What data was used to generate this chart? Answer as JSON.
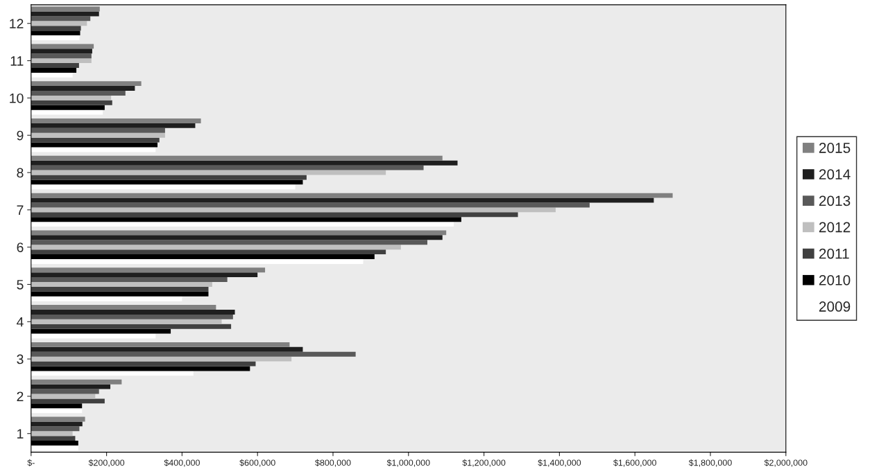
{
  "chart_data": {
    "type": "bar",
    "orientation": "horizontal",
    "categories": [
      "12",
      "11",
      "10",
      "9",
      "8",
      "7",
      "6",
      "5",
      "4",
      "3",
      "2",
      "1"
    ],
    "series": [
      {
        "name": "2009",
        "color": "#ffffff",
        "values": [
          128000,
          110000,
          190000,
          330000,
          700000,
          1120000,
          880000,
          400000,
          330000,
          430000,
          135000,
          125000
        ]
      },
      {
        "name": "2010",
        "color": "#000000",
        "values": [
          130000,
          120000,
          195000,
          335000,
          720000,
          1140000,
          910000,
          470000,
          370000,
          580000,
          135000,
          125000
        ]
      },
      {
        "name": "2011",
        "color": "#404040",
        "values": [
          132000,
          127000,
          215000,
          340000,
          730000,
          1290000,
          940000,
          470000,
          530000,
          595000,
          195000,
          117000
        ]
      },
      {
        "name": "2012",
        "color": "#bfbfbf",
        "values": [
          148000,
          160000,
          212000,
          355000,
          940000,
          1390000,
          980000,
          480000,
          505000,
          690000,
          170000,
          110000
        ]
      },
      {
        "name": "2013",
        "color": "#595959",
        "values": [
          157000,
          160000,
          250000,
          355000,
          1040000,
          1480000,
          1050000,
          520000,
          535000,
          860000,
          180000,
          128000
        ]
      },
      {
        "name": "2014",
        "color": "#1f1f1f",
        "values": [
          180000,
          162000,
          275000,
          435000,
          1130000,
          1650000,
          1090000,
          600000,
          540000,
          720000,
          210000,
          136000
        ]
      },
      {
        "name": "2015",
        "color": "#808080",
        "values": [
          182000,
          166000,
          292000,
          450000,
          1090000,
          1700000,
          1100000,
          620000,
          490000,
          685000,
          240000,
          143000
        ]
      }
    ],
    "xlim": [
      0,
      2000000
    ],
    "xticks": [
      {
        "value": 0,
        "label": "$-"
      },
      {
        "value": 200000,
        "label": "$200,000"
      },
      {
        "value": 400000,
        "label": "$400,000"
      },
      {
        "value": 600000,
        "label": "$600,000"
      },
      {
        "value": 800000,
        "label": "$800,000"
      },
      {
        "value": 1000000,
        "label": "$1,000,000"
      },
      {
        "value": 1200000,
        "label": "$1,200,000"
      },
      {
        "value": 1400000,
        "label": "$1,400,000"
      },
      {
        "value": 1600000,
        "label": "$1,600,000"
      },
      {
        "value": 1800000,
        "label": "$1,800,000"
      },
      {
        "value": 2000000,
        "label": "$2,000,000"
      }
    ],
    "grid": false,
    "legend": "right"
  }
}
